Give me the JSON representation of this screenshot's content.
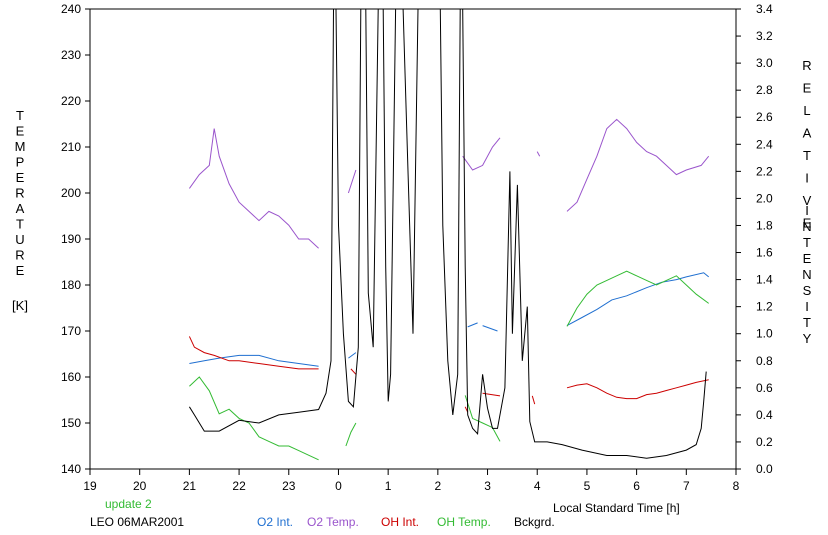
{
  "chart_data": {
    "type": "line",
    "left_axis": {
      "label_letters": [
        "T",
        "E",
        "M",
        "P",
        "E",
        "R",
        "A",
        "T",
        "U",
        "R",
        "E"
      ],
      "unit": "[K]",
      "ylim": [
        140,
        240
      ],
      "ticks": [
        140,
        150,
        160,
        170,
        180,
        190,
        200,
        210,
        220,
        230,
        240
      ]
    },
    "right_axis": {
      "label_letters_top": [
        "R",
        "E",
        "L",
        "A",
        "T",
        "I",
        "V",
        "E"
      ],
      "label_letters_bottom": [
        "I",
        "N",
        "T",
        "E",
        "N",
        "S",
        "I",
        "T",
        "Y"
      ],
      "ylim": [
        0,
        3.4
      ],
      "ticks": [
        "0.0",
        "0.2",
        "0.4",
        "0.6",
        "0.8",
        "1.0",
        "1.2",
        "1.4",
        "1.6",
        "1.8",
        "2.0",
        "2.2",
        "2.4",
        "2.6",
        "2.8",
        "3.0",
        "3.2",
        "3.4"
      ]
    },
    "x_axis": {
      "label": "Local Standard Time [h]",
      "ticks": [
        "19",
        "20",
        "21",
        "22",
        "23",
        "0",
        "1",
        "2",
        "3",
        "4",
        "5",
        "6",
        "7",
        "8"
      ],
      "xlim": [
        19,
        32
      ]
    },
    "annotation_update": "update 2",
    "annotation_site": "LEO 06MAR2001",
    "series": [
      {
        "name": "O2 Int.",
        "color": "#1f6fd0",
        "axis": "right",
        "segments": [
          [
            [
              21.0,
              0.78
            ],
            [
              21.3,
              0.8
            ],
            [
              21.6,
              0.82
            ],
            [
              22.0,
              0.84
            ],
            [
              22.4,
              0.84
            ],
            [
              22.8,
              0.8
            ],
            [
              23.2,
              0.78
            ],
            [
              23.6,
              0.76
            ]
          ],
          [
            [
              24.2,
              0.82
            ],
            [
              24.35,
              0.86
            ]
          ],
          [
            [
              26.6,
              1.05
            ],
            [
              26.8,
              1.08
            ]
          ],
          [
            [
              26.9,
              1.06
            ],
            [
              27.2,
              1.02
            ]
          ],
          [
            [
              28.6,
              1.06
            ],
            [
              28.9,
              1.12
            ],
            [
              29.2,
              1.18
            ],
            [
              29.5,
              1.25
            ],
            [
              29.8,
              1.28
            ],
            [
              30.2,
              1.34
            ],
            [
              30.5,
              1.38
            ],
            [
              30.8,
              1.4
            ],
            [
              31.0,
              1.42
            ],
            [
              31.35,
              1.45
            ],
            [
              31.45,
              1.42
            ]
          ]
        ]
      },
      {
        "name": "O2 Temp.",
        "color": "#9a55cc",
        "axis": "left",
        "segments": [
          [
            [
              21.0,
              201
            ],
            [
              21.2,
              204
            ],
            [
              21.4,
              206
            ],
            [
              21.5,
              214
            ],
            [
              21.6,
              208
            ],
            [
              21.8,
              202
            ],
            [
              22.0,
              198
            ],
            [
              22.2,
              196
            ],
            [
              22.4,
              194
            ],
            [
              22.6,
              196
            ],
            [
              22.8,
              195
            ],
            [
              23.0,
              193
            ],
            [
              23.2,
              190
            ],
            [
              23.4,
              190
            ],
            [
              23.6,
              188
            ]
          ],
          [
            [
              24.2,
              200
            ],
            [
              24.35,
              205
            ]
          ],
          [
            [
              26.5,
              208
            ],
            [
              26.7,
              205
            ],
            [
              26.9,
              206
            ],
            [
              27.1,
              210
            ],
            [
              27.25,
              212
            ]
          ],
          [
            [
              28.0,
              209
            ],
            [
              28.05,
              208
            ]
          ],
          [
            [
              28.6,
              196
            ],
            [
              28.8,
              198
            ],
            [
              29.0,
              203
            ],
            [
              29.2,
              208
            ],
            [
              29.4,
              214
            ],
            [
              29.6,
              216
            ],
            [
              29.8,
              214
            ],
            [
              30.0,
              211
            ],
            [
              30.2,
              209
            ],
            [
              30.4,
              208
            ],
            [
              30.6,
              206
            ],
            [
              30.8,
              204
            ],
            [
              31.0,
              205
            ],
            [
              31.3,
              206
            ],
            [
              31.45,
              208
            ]
          ]
        ]
      },
      {
        "name": "OH Int.",
        "color": "#cc0000",
        "axis": "right",
        "segments": [
          [
            [
              21.0,
              0.98
            ],
            [
              21.1,
              0.9
            ],
            [
              21.3,
              0.86
            ],
            [
              21.5,
              0.84
            ],
            [
              21.8,
              0.8
            ],
            [
              22.0,
              0.8
            ],
            [
              22.4,
              0.78
            ],
            [
              22.8,
              0.76
            ],
            [
              23.2,
              0.74
            ],
            [
              23.6,
              0.74
            ]
          ],
          [
            [
              24.25,
              0.74
            ],
            [
              24.35,
              0.7
            ]
          ],
          [
            [
              26.55,
              0.46
            ],
            [
              26.6,
              0.42
            ]
          ],
          [
            [
              26.9,
              0.56
            ],
            [
              27.25,
              0.54
            ]
          ],
          [
            [
              27.9,
              0.54
            ],
            [
              27.95,
              0.48
            ]
          ],
          [
            [
              28.6,
              0.6
            ],
            [
              28.8,
              0.62
            ],
            [
              29.0,
              0.63
            ],
            [
              29.2,
              0.6
            ],
            [
              29.4,
              0.56
            ],
            [
              29.6,
              0.53
            ],
            [
              29.8,
              0.52
            ],
            [
              30.0,
              0.52
            ],
            [
              30.2,
              0.55
            ],
            [
              30.4,
              0.56
            ],
            [
              30.6,
              0.58
            ],
            [
              30.8,
              0.6
            ],
            [
              31.0,
              0.62
            ],
            [
              31.2,
              0.64
            ],
            [
              31.45,
              0.66
            ]
          ]
        ]
      },
      {
        "name": "OH Temp.",
        "color": "#33bb33",
        "axis": "left",
        "segments": [
          [
            [
              21.0,
              158
            ],
            [
              21.2,
              160
            ],
            [
              21.4,
              157
            ],
            [
              21.6,
              152
            ],
            [
              21.8,
              153
            ],
            [
              22.0,
              151
            ],
            [
              22.2,
              150
            ],
            [
              22.4,
              147
            ],
            [
              22.6,
              146
            ],
            [
              22.8,
              145
            ],
            [
              23.0,
              145
            ],
            [
              23.2,
              144
            ],
            [
              23.4,
              143
            ],
            [
              23.6,
              142
            ]
          ],
          [
            [
              24.15,
              145
            ],
            [
              24.25,
              148
            ],
            [
              24.35,
              150
            ]
          ],
          [
            [
              26.55,
              156
            ],
            [
              26.7,
              151
            ],
            [
              26.9,
              150
            ],
            [
              27.1,
              149
            ],
            [
              27.25,
              146
            ]
          ],
          [
            [
              28.6,
              171
            ],
            [
              28.8,
              175
            ],
            [
              29.0,
              178
            ],
            [
              29.2,
              180
            ],
            [
              29.4,
              181
            ],
            [
              29.6,
              182
            ],
            [
              29.8,
              183
            ],
            [
              30.0,
              182
            ],
            [
              30.2,
              181
            ],
            [
              30.4,
              180
            ],
            [
              30.6,
              181
            ],
            [
              30.8,
              182
            ],
            [
              31.0,
              180
            ],
            [
              31.2,
              178
            ],
            [
              31.45,
              176
            ]
          ]
        ]
      },
      {
        "name": "Bckgrd.",
        "color": "#000000",
        "axis": "right",
        "segments": [
          [
            [
              21.0,
              0.46
            ],
            [
              21.1,
              0.4
            ],
            [
              21.3,
              0.28
            ],
            [
              21.6,
              0.28
            ],
            [
              22.0,
              0.36
            ],
            [
              22.4,
              0.34
            ],
            [
              22.8,
              0.4
            ],
            [
              23.2,
              0.42
            ],
            [
              23.6,
              0.44
            ],
            [
              23.75,
              0.56
            ],
            [
              23.85,
              0.8
            ],
            [
              23.9,
              3.4
            ]
          ],
          [
            [
              23.95,
              3.4
            ],
            [
              24.0,
              1.8
            ],
            [
              24.1,
              1.0
            ],
            [
              24.2,
              0.5
            ],
            [
              24.3,
              0.46
            ],
            [
              24.4,
              0.9
            ],
            [
              24.45,
              3.4
            ]
          ],
          [
            [
              24.55,
              3.4
            ],
            [
              24.6,
              1.3
            ],
            [
              24.7,
              0.9
            ],
            [
              24.8,
              3.4
            ]
          ],
          [
            [
              24.9,
              3.4
            ],
            [
              24.95,
              1.5
            ],
            [
              25.0,
              0.5
            ],
            [
              25.05,
              0.7
            ],
            [
              25.15,
              3.4
            ]
          ],
          [
            [
              25.3,
              3.4
            ],
            [
              25.4,
              2.2
            ],
            [
              25.5,
              1.0
            ],
            [
              25.6,
              3.4
            ]
          ],
          [
            [
              26.05,
              3.4
            ],
            [
              26.1,
              1.8
            ],
            [
              26.2,
              0.8
            ],
            [
              26.3,
              0.4
            ],
            [
              26.4,
              0.7
            ],
            [
              26.45,
              3.4
            ]
          ],
          [
            [
              26.5,
              3.4
            ],
            [
              26.55,
              1.5
            ],
            [
              26.6,
              0.4
            ],
            [
              26.7,
              0.3
            ],
            [
              26.8,
              0.26
            ],
            [
              26.9,
              0.7
            ],
            [
              27.0,
              0.45
            ],
            [
              27.1,
              0.3
            ],
            [
              27.2,
              0.3
            ],
            [
              27.35,
              0.6
            ],
            [
              27.45,
              2.2
            ],
            [
              27.5,
              1.0
            ],
            [
              27.6,
              2.1
            ],
            [
              27.7,
              0.8
            ],
            [
              27.8,
              1.2
            ],
            [
              27.85,
              0.35
            ],
            [
              27.95,
              0.2
            ],
            [
              28.2,
              0.2
            ],
            [
              28.5,
              0.18
            ],
            [
              28.9,
              0.14
            ],
            [
              29.4,
              0.1
            ],
            [
              29.8,
              0.1
            ],
            [
              30.2,
              0.08
            ],
            [
              30.6,
              0.1
            ],
            [
              31.0,
              0.14
            ],
            [
              31.2,
              0.18
            ],
            [
              31.3,
              0.3
            ],
            [
              31.35,
              0.5
            ],
            [
              31.4,
              0.72
            ]
          ]
        ]
      }
    ]
  }
}
